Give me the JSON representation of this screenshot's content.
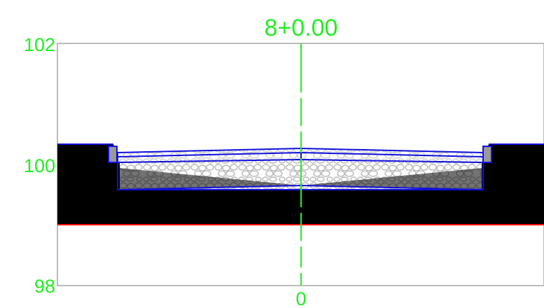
{
  "section": {
    "station_label": "8+0.00",
    "elevation_labels": {
      "top": "102",
      "middle": "100",
      "bottom": "98"
    },
    "offset_label": "0"
  },
  "colors": {
    "label_green": "#22ee22",
    "centerline": "#22ee22",
    "ground_fill": "#000000",
    "bottom_line": "#ff0000",
    "pavement_outline": "#1010dd",
    "aggregate_stone": "#b8b8b8",
    "curb_fill": "#999999",
    "frame": "#bbbbbb",
    "background": "#ffffff"
  },
  "elevations": {
    "min": 98,
    "max": 102
  }
}
